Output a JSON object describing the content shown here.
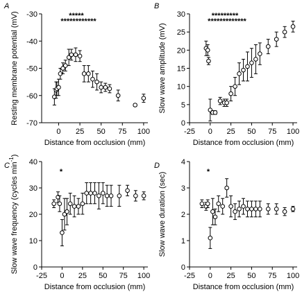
{
  "chart_data": [
    {
      "type": "scatter",
      "label": "A",
      "ylabel": "Resting membrane potential (mV)",
      "xlabel": "Distance from occlusion (mm)",
      "x": [
        -5,
        -3,
        -2,
        0,
        2,
        5,
        8,
        12,
        15,
        20,
        25,
        30,
        35,
        40,
        45,
        50,
        55,
        60,
        70,
        90,
        100
      ],
      "values": [
        -60.5,
        -58,
        -57.5,
        -57,
        -52,
        -50,
        -49,
        -46,
        -45,
        -45,
        -45.5,
        -52,
        -52,
        -54,
        -55,
        -57,
        -57,
        -57.5,
        -60,
        -63.5,
        -61
      ],
      "errors": [
        3,
        3,
        2.5,
        3,
        2,
        2,
        2,
        3,
        2,
        2.5,
        2,
        3,
        3,
        3,
        3,
        2,
        1.5,
        1.5,
        2,
        0.5,
        1.5
      ],
      "xlim": [
        -20,
        105
      ],
      "ylim": [
        -70,
        -30
      ],
      "xticks": [
        0,
        25,
        50,
        75,
        100
      ],
      "yticks": [
        -70,
        -60,
        -50,
        -40,
        -30
      ],
      "annotations": [
        "*****",
        "************"
      ]
    },
    {
      "type": "scatter",
      "label": "B",
      "ylabel": "Slow wave amplitude (mV)",
      "xlabel": "Distance from occlusion (mm)",
      "x": [
        -5,
        -3,
        -2,
        0,
        3,
        6,
        12,
        17,
        20,
        25,
        30,
        35,
        40,
        45,
        50,
        55,
        60,
        70,
        80,
        90,
        100
      ],
      "values": [
        20.5,
        20,
        17,
        3.5,
        2.8,
        2.8,
        6,
        5.5,
        5.5,
        8,
        10,
        13.5,
        14.5,
        15.5,
        16.5,
        17.5,
        19,
        21,
        23,
        25,
        26.5
      ],
      "errors": [
        2,
        1.5,
        1,
        3,
        0.5,
        0.5,
        1,
        1,
        1,
        2,
        2.5,
        3,
        3,
        4,
        4,
        4,
        3,
        2,
        2,
        1.5,
        1.5
      ],
      "xlim": [
        -25,
        105
      ],
      "ylim": [
        0,
        30
      ],
      "xticks": [
        -25,
        0,
        25,
        50,
        75,
        100
      ],
      "yticks": [
        0,
        5,
        10,
        15,
        20,
        25,
        30
      ],
      "annotations": [
        "*********",
        "*************"
      ]
    },
    {
      "type": "scatter",
      "label": "C",
      "ylabel": "Slow wave frequency (cycles min",
      "ylabel_sup": "-1",
      "ylabel_end": ")",
      "xlabel": "Distance from occlusion (mm)",
      "x": [
        -10,
        -5,
        -3,
        0,
        3,
        6,
        10,
        15,
        20,
        25,
        30,
        35,
        40,
        45,
        50,
        55,
        60,
        70,
        80,
        90,
        100
      ],
      "values": [
        24,
        26.5,
        24,
        13,
        20,
        21,
        24,
        23,
        23,
        24,
        28,
        28,
        28,
        27,
        28,
        27,
        27,
        27,
        29,
        27,
        27
      ],
      "errors": [
        1.5,
        2,
        3,
        5,
        6,
        5,
        4,
        4,
        3,
        4,
        4,
        4,
        4,
        5,
        4,
        4,
        4,
        4,
        2,
        2,
        1.5
      ],
      "xlim": [
        -25,
        105
      ],
      "ylim": [
        0,
        40
      ],
      "xticks": [
        -25,
        0,
        25,
        50,
        75,
        100
      ],
      "yticks": [
        0,
        10,
        20,
        30,
        40
      ],
      "annotations": [
        "*"
      ]
    },
    {
      "type": "scatter",
      "label": "D",
      "ylabel": "Slow wave duration (sec)",
      "xlabel": "Distance from occlusion (mm)",
      "x": [
        -10,
        -5,
        -3,
        0,
        3,
        6,
        10,
        15,
        20,
        25,
        30,
        35,
        40,
        45,
        50,
        55,
        60,
        70,
        80,
        90,
        100
      ],
      "values": [
        2.4,
        2.3,
        2.4,
        1.1,
        2.1,
        1.9,
        2.4,
        2.3,
        3.0,
        2.3,
        2.1,
        2.2,
        2.3,
        2.2,
        2.2,
        2.2,
        2.2,
        2.2,
        2.2,
        2.1,
        2.2
      ],
      "errors": [
        0.15,
        0.15,
        0.15,
        0.4,
        0.5,
        0.3,
        0.3,
        0.3,
        0.35,
        0.4,
        0.3,
        0.3,
        0.3,
        0.3,
        0.3,
        0.3,
        0.3,
        0.2,
        0.2,
        0.15,
        0.1
      ],
      "xlim": [
        -25,
        105
      ],
      "ylim": [
        0,
        4
      ],
      "xticks": [
        -25,
        0,
        25,
        50,
        75,
        100
      ],
      "yticks": [
        0,
        1,
        2,
        3,
        4
      ],
      "annotations": [
        "*"
      ]
    }
  ]
}
